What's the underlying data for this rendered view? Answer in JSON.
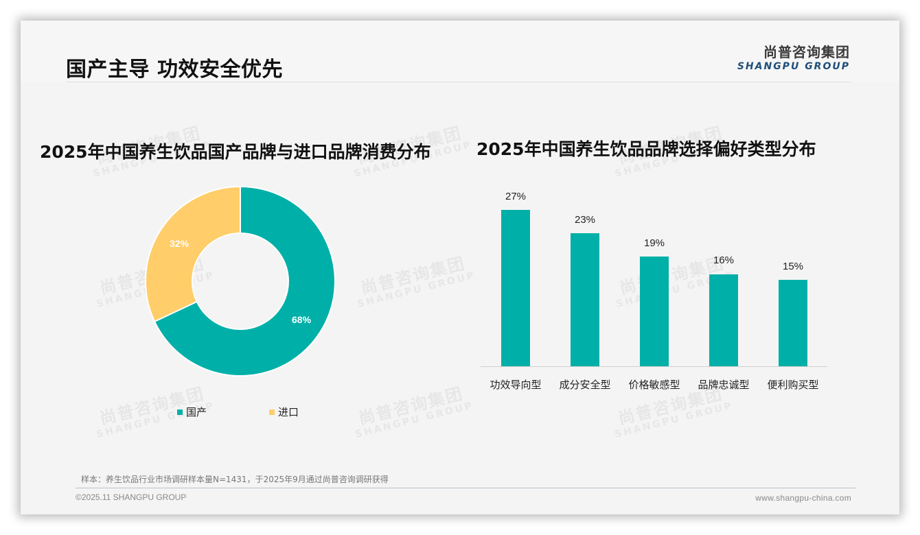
{
  "header": {
    "title": "国产主导 功效安全优先",
    "logo_cn": "尚普咨询集团",
    "logo_en": "SHANGPU GROUP"
  },
  "watermark": {
    "cn": "尚普咨询集团",
    "en": "SHANGPU GROUP"
  },
  "colors": {
    "teal": "#00b0a8",
    "yellow": "#ffcd69",
    "logo_blue": "#1f4e79"
  },
  "chart_data": [
    {
      "type": "pie",
      "variant": "donut",
      "title": "2025年中国养生饮品国产品牌与进口品牌消费分布",
      "categories": [
        "国产",
        "进口"
      ],
      "values": [
        68,
        32
      ],
      "labels": [
        "68%",
        "32%"
      ],
      "colors": [
        "#00b0a8",
        "#ffcd69"
      ],
      "legend_position": "bottom"
    },
    {
      "type": "bar",
      "title": "2025年中国养生饮品品牌选择偏好类型分布",
      "categories": [
        "功效导向型",
        "成分安全型",
        "价格敏感型",
        "品牌忠诚型",
        "便利购买型"
      ],
      "values": [
        27,
        23,
        19,
        16,
        15
      ],
      "labels": [
        "27%",
        "23%",
        "19%",
        "16%",
        "15%"
      ],
      "xlabel": "",
      "ylabel": "",
      "unit": "%",
      "grid": false,
      "color": "#00b0a8"
    }
  ],
  "donut": {
    "title": "2025年中国养生饮品国产品牌与进口品牌消费分布",
    "slices": [
      {
        "label": "国产",
        "value_label": "68%"
      },
      {
        "label": "进口",
        "value_label": "32%"
      }
    ]
  },
  "bars": {
    "title": "2025年中国养生饮品品牌选择偏好类型分布",
    "items": [
      {
        "label": "功效导向型",
        "value_label": "27%"
      },
      {
        "label": "成分安全型",
        "value_label": "23%"
      },
      {
        "label": "价格敏感型",
        "value_label": "19%"
      },
      {
        "label": "品牌忠诚型",
        "value_label": "16%"
      },
      {
        "label": "便利购买型",
        "value_label": "15%"
      }
    ]
  },
  "footer": {
    "note": "样本：养生饮品行业市场调研样本量N=1431，于2025年9月通过尚普咨询调研获得",
    "copyright": "©2025.11 SHANGPU GROUP",
    "website": "www.shangpu-china.com"
  }
}
